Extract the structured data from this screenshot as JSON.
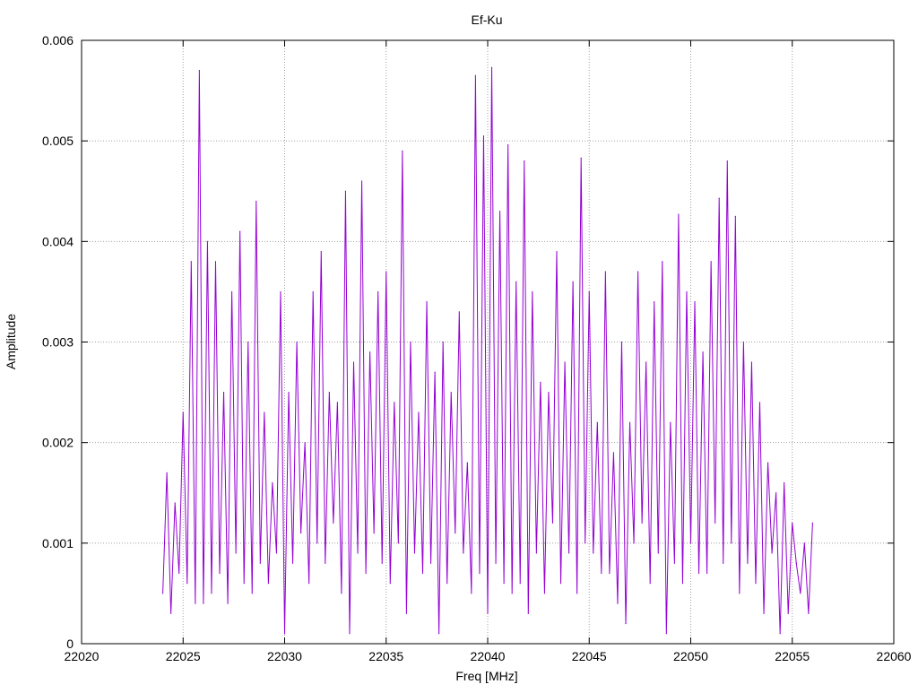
{
  "chart_data": {
    "type": "line",
    "title": "Ef-Ku",
    "xlabel": "Freq [MHz]",
    "ylabel": "Amplitude",
    "xlim": [
      22020,
      22060
    ],
    "ylim": [
      0,
      0.006
    ],
    "x_ticks": [
      22020,
      22025,
      22030,
      22035,
      22040,
      22045,
      22050,
      22055,
      22060
    ],
    "y_ticks": [
      0,
      0.001,
      0.002,
      0.003,
      0.004,
      0.005,
      0.006
    ],
    "x_tick_labels": [
      "22020",
      "22025",
      "22030",
      "22035",
      "22040",
      "22045",
      "22050",
      "22055",
      "22060"
    ],
    "y_tick_labels": [
      "0",
      "0.001",
      "0.002",
      "0.003",
      "0.004",
      "0.005",
      "0.006"
    ],
    "grid": true,
    "legend": "none",
    "series": [
      {
        "name": "Ef-Ku",
        "color": "#9400d3",
        "x_start": 22024.0,
        "x_step": 0.2,
        "values": [
          0.0005,
          0.0017,
          0.0003,
          0.0014,
          0.0007,
          0.0023,
          0.0006,
          0.0038,
          0.0004,
          0.0057,
          0.0004,
          0.004,
          0.0005,
          0.0038,
          0.0007,
          0.0025,
          0.0004,
          0.0035,
          0.0009,
          0.0041,
          0.0006,
          0.003,
          0.0005,
          0.0044,
          0.0008,
          0.0023,
          0.0006,
          0.0016,
          0.0009,
          0.0035,
          0.0001,
          0.0025,
          0.0008,
          0.003,
          0.0011,
          0.002,
          0.0006,
          0.0035,
          0.001,
          0.0039,
          0.0008,
          0.0025,
          0.0012,
          0.0024,
          0.0005,
          0.0045,
          0.0001,
          0.0028,
          0.0009,
          0.0046,
          0.0007,
          0.0029,
          0.0011,
          0.0035,
          0.0008,
          0.0037,
          0.0006,
          0.0024,
          0.001,
          0.0049,
          0.0003,
          0.003,
          0.0009,
          0.0023,
          0.0007,
          0.0034,
          0.0008,
          0.0027,
          0.0001,
          0.003,
          0.0006,
          0.0025,
          0.0011,
          0.0033,
          0.0009,
          0.0018,
          0.0005,
          0.00565,
          0.0007,
          0.00505,
          0.0003,
          0.00573,
          0.0008,
          0.0043,
          0.0006,
          0.00496,
          0.0005,
          0.0036,
          0.0006,
          0.0048,
          0.0003,
          0.0035,
          0.0009,
          0.0026,
          0.0005,
          0.0025,
          0.0012,
          0.0039,
          0.0006,
          0.0028,
          0.0009,
          0.0036,
          0.0005,
          0.00483,
          0.001,
          0.0035,
          0.0009,
          0.0022,
          0.0007,
          0.0037,
          0.0007,
          0.0019,
          0.0004,
          0.003,
          0.0002,
          0.0022,
          0.001,
          0.0037,
          0.0012,
          0.0028,
          0.0006,
          0.0034,
          0.0009,
          0.0038,
          0.0001,
          0.0022,
          0.0008,
          0.00427,
          0.0006,
          0.0035,
          0.001,
          0.0034,
          0.0007,
          0.0029,
          0.0007,
          0.0038,
          0.0012,
          0.00443,
          0.0008,
          0.0048,
          0.001,
          0.00425,
          0.0005,
          0.003,
          0.0008,
          0.0028,
          0.0006,
          0.0024,
          0.0003,
          0.0018,
          0.0009,
          0.0015,
          0.0001,
          0.0016,
          0.0003,
          0.0012,
          0.0008,
          0.0005,
          0.001,
          0.0003,
          0.0012
        ]
      }
    ]
  }
}
